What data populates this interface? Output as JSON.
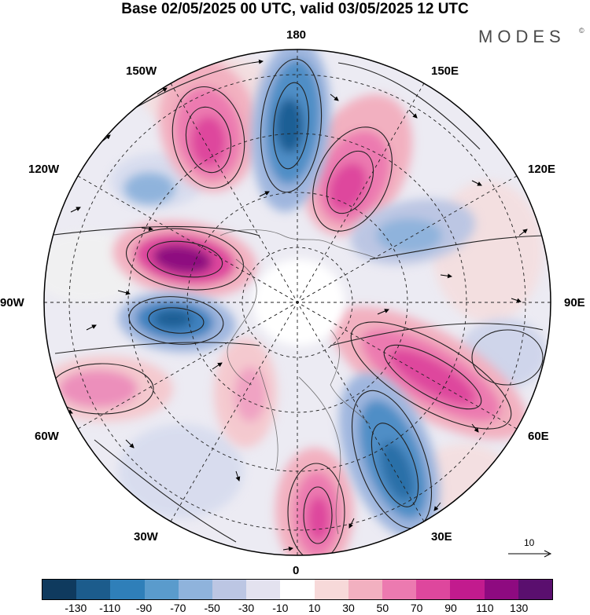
{
  "title": "Base 02/05/2025 00 UTC, valid 03/05/2025 12 UTC",
  "brand": "MODES",
  "brand_mark": "©",
  "map": {
    "projection": "north-polar-stereographic",
    "longitude_labels": [
      "180",
      "150E",
      "120E",
      "90E",
      "60E",
      "30E",
      "0",
      "30W",
      "60W",
      "90W",
      "120W",
      "150W"
    ],
    "features": [
      "shaded anomaly field",
      "streamlines",
      "wind vectors",
      "coastlines",
      "latitude/longitude grid"
    ]
  },
  "reference_vector": {
    "value": "10"
  },
  "colorbar": {
    "colors": [
      "#0f3a5e",
      "#1c5c8c",
      "#2f7fb9",
      "#5a9bcc",
      "#8fb3dc",
      "#bcc6e3",
      "#e3e2ef",
      "#ffffff",
      "#f7d9d9",
      "#f2b0c0",
      "#ec7ab0",
      "#de479d",
      "#c21b8e",
      "#8e0a80",
      "#5a0f6e"
    ],
    "ticks": [
      "-130",
      "-110",
      "-90",
      "-70",
      "-50",
      "-30",
      "-10",
      "10",
      "30",
      "50",
      "70",
      "90",
      "110",
      "130"
    ]
  }
}
